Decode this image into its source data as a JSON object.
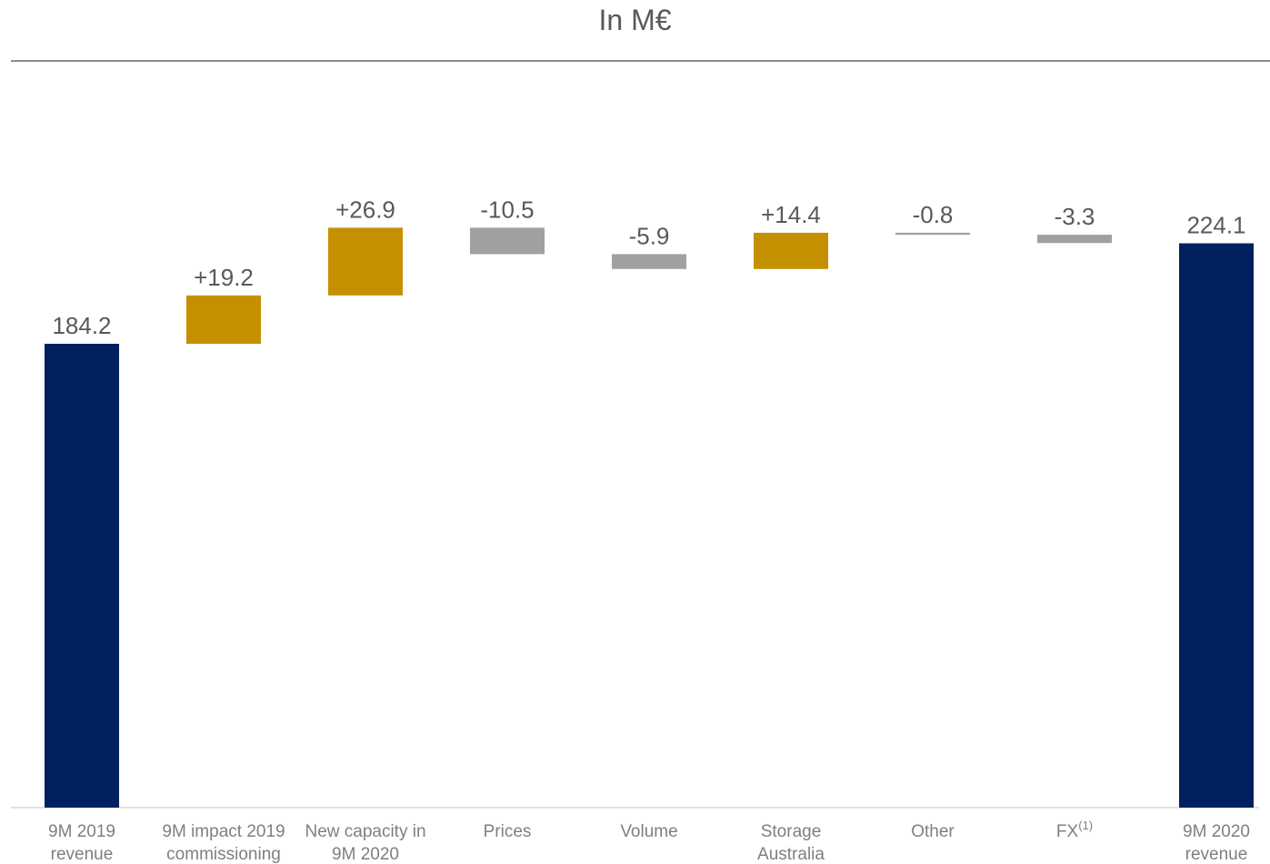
{
  "chart_data": {
    "type": "bar",
    "subtype": "waterfall",
    "title": "In M€",
    "xlabel": "",
    "ylabel": "",
    "grid": false,
    "legend": "none",
    "colors": {
      "total": "#002060",
      "increase": "#C49000",
      "decrease": "#A0A0A0",
      "value_label": "#595959",
      "category_label": "#7F7F7F",
      "axis": "#D9D9D9",
      "title_rule": "#8C8C8C"
    },
    "items": [
      {
        "category": [
          "9M 2019",
          "revenue"
        ],
        "value": 184.2,
        "label": "184.2",
        "kind": "total"
      },
      {
        "category": [
          "9M impact 2019",
          "commissioning"
        ],
        "value": 19.2,
        "label": "+19.2",
        "kind": "increase"
      },
      {
        "category": [
          "New capacity in",
          "9M 2020"
        ],
        "value": 26.9,
        "label": "+26.9",
        "kind": "increase"
      },
      {
        "category": [
          "Prices"
        ],
        "value": -10.5,
        "label": "-10.5",
        "kind": "decrease"
      },
      {
        "category": [
          "Volume"
        ],
        "value": -5.9,
        "label": "-5.9",
        "kind": "decrease"
      },
      {
        "category": [
          "Storage",
          "Australia"
        ],
        "value": 14.4,
        "label": "+14.4",
        "kind": "increase"
      },
      {
        "category": [
          "Other"
        ],
        "value": -0.8,
        "label": "-0.8",
        "kind": "decrease"
      },
      {
        "category": [
          "FX"
        ],
        "category_sup": "(1)",
        "value": -3.3,
        "label": "-3.3",
        "kind": "decrease"
      },
      {
        "category": [
          "9M 2020",
          "revenue"
        ],
        "value": 224.1,
        "label": "224.1",
        "kind": "total"
      }
    ]
  }
}
